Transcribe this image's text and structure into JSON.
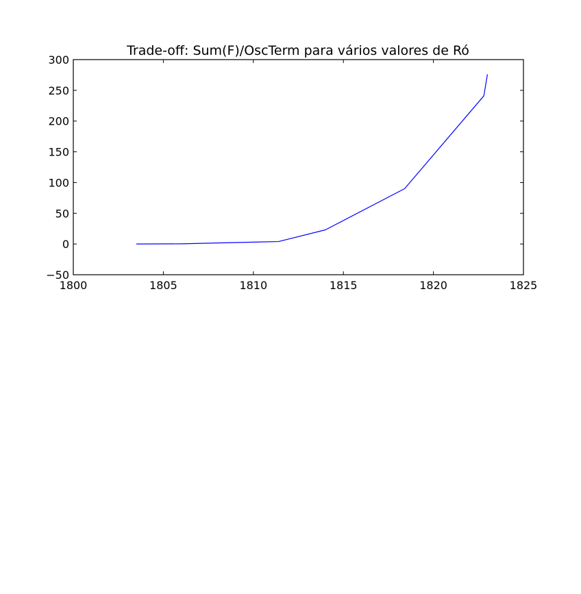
{
  "chart_data": {
    "type": "line",
    "title": "Trade-off: Sum(F)/OscTerm para vários valores de Ró",
    "xlabel": "",
    "ylabel": "",
    "xlim": [
      1800,
      1825
    ],
    "ylim": [
      -50,
      300
    ],
    "xticks": [
      1800,
      1805,
      1810,
      1815,
      1820,
      1825
    ],
    "yticks": [
      -50,
      0,
      50,
      100,
      150,
      200,
      250,
      300
    ],
    "grid": false,
    "legend": null,
    "series": [
      {
        "color": "#0000ff",
        "x": [
          1803.5,
          1806.0,
          1811.4,
          1814.0,
          1818.4,
          1822.8,
          1823.0
        ],
        "y": [
          0.0,
          0.3,
          4.0,
          23.0,
          90.0,
          241.0,
          276.0
        ]
      }
    ]
  }
}
